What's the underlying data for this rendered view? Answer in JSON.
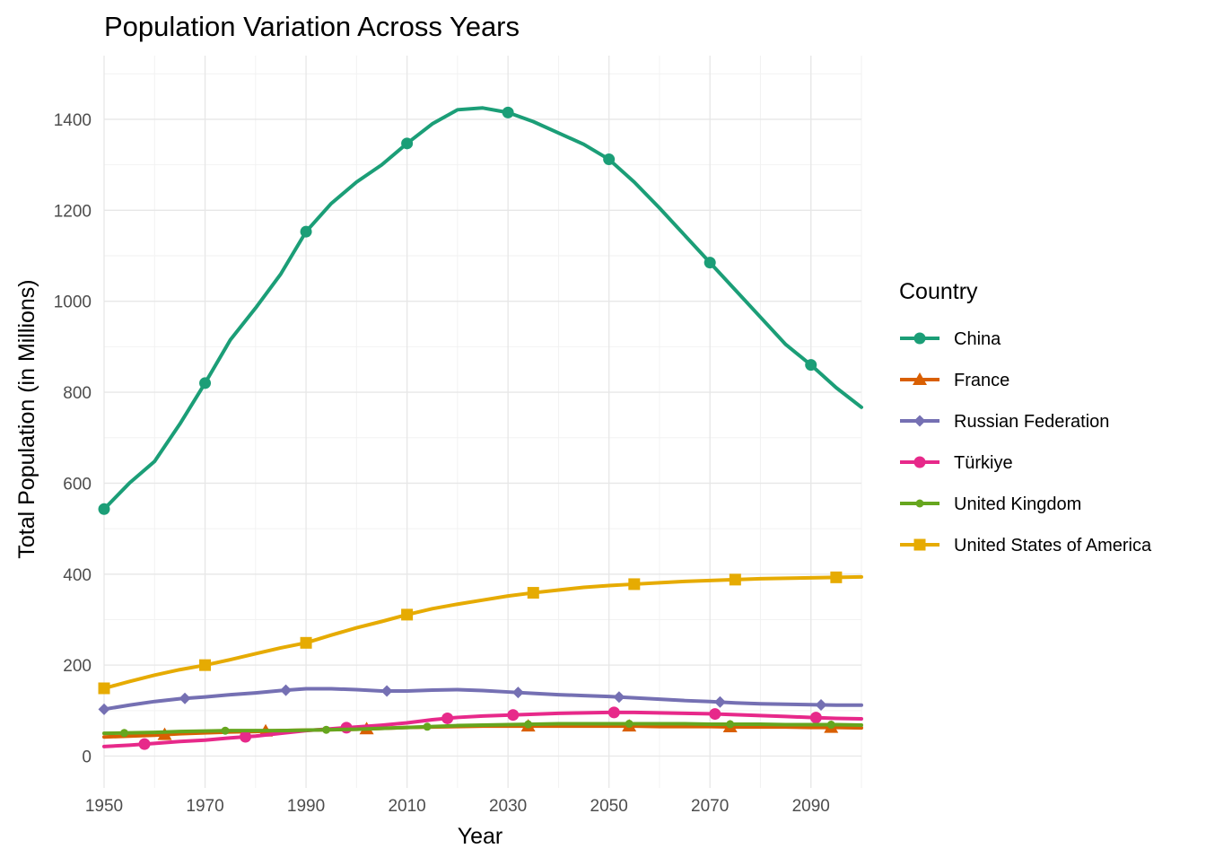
{
  "chart_data": {
    "type": "line",
    "title": "Population Variation Across Years",
    "xlabel": "Year",
    "ylabel": "Total Population (in Millions)",
    "xlim": [
      1950,
      2100
    ],
    "ylim": [
      -70,
      1540
    ],
    "x_ticks": [
      1950,
      1970,
      1990,
      2010,
      2030,
      2050,
      2070,
      2090
    ],
    "y_ticks": [
      0,
      200,
      400,
      600,
      800,
      1000,
      1200,
      1400
    ],
    "grid": true,
    "legend": {
      "title": "Country",
      "position": "right"
    },
    "x": [
      1950,
      1955,
      1960,
      1965,
      1970,
      1975,
      1980,
      1985,
      1990,
      1995,
      2000,
      2005,
      2010,
      2015,
      2020,
      2025,
      2030,
      2035,
      2040,
      2045,
      2050,
      2055,
      2060,
      2065,
      2070,
      2075,
      2080,
      2085,
      2090,
      2095,
      2100
    ],
    "series": [
      {
        "name": "China",
        "color": "#1B9E77",
        "marker": "circle",
        "marker_x": [
          1950,
          1970,
          1990,
          2010,
          2030,
          2050,
          2070,
          2090
        ],
        "values": [
          543,
          600,
          648,
          730,
          820,
          915,
          985,
          1060,
          1153,
          1215,
          1262,
          1300,
          1347,
          1390,
          1421,
          1425,
          1415,
          1395,
          1370,
          1345,
          1312,
          1262,
          1205,
          1145,
          1085,
          1025,
          965,
          905,
          860,
          810,
          767
        ]
      },
      {
        "name": "France",
        "color": "#D95F02",
        "marker": "triangle",
        "marker_x": [
          1962,
          1982,
          2002,
          2034,
          2054,
          2074,
          2094
        ],
        "values": [
          42,
          44,
          46,
          49,
          51,
          53,
          54,
          56,
          57,
          58,
          59,
          61,
          63,
          64,
          65,
          66,
          66,
          66,
          66,
          66,
          66,
          66,
          65,
          65,
          65,
          64,
          64,
          64,
          63,
          63,
          62
        ]
      },
      {
        "name": "Russian Federation",
        "color": "#7570B3",
        "marker": "diamond",
        "marker_x": [
          1950,
          1966,
          1986,
          2006,
          2032,
          2052,
          2072,
          2092
        ],
        "values": [
          103,
          112,
          120,
          126,
          130,
          135,
          139,
          144,
          148,
          148,
          146,
          143,
          143,
          145,
          146,
          144,
          141,
          138,
          135,
          133,
          131,
          128,
          125,
          122,
          120,
          117,
          115,
          114,
          113,
          112,
          112
        ]
      },
      {
        "name": "Türkiye",
        "color": "#E7298A",
        "marker": "circle",
        "marker_x": [
          1958,
          1978,
          1998,
          2018,
          2031,
          2051,
          2071,
          2091
        ],
        "values": [
          21,
          24,
          28,
          32,
          35,
          40,
          44,
          50,
          56,
          60,
          64,
          68,
          73,
          80,
          85,
          88,
          90,
          92,
          94,
          95,
          96,
          96,
          95,
          94,
          93,
          91,
          89,
          87,
          85,
          83,
          82
        ]
      },
      {
        "name": "United Kingdom",
        "color": "#66A61E",
        "marker": "small-circle",
        "marker_x": [
          1954,
          1974,
          1994,
          2014,
          2034,
          2054,
          2074,
          2094
        ],
        "values": [
          50,
          51,
          52,
          54,
          55,
          56,
          56,
          56,
          57,
          58,
          59,
          61,
          63,
          65,
          67,
          68,
          69,
          70,
          71,
          71,
          71,
          71,
          71,
          71,
          70,
          70,
          70,
          69,
          69,
          69,
          68
        ]
      },
      {
        "name": "United States of America",
        "color": "#E6AB02",
        "marker": "square",
        "marker_x": [
          1950,
          1970,
          1990,
          2010,
          2035,
          2055,
          2075,
          2095
        ],
        "values": [
          149,
          164,
          178,
          190,
          200,
          212,
          225,
          238,
          249,
          266,
          282,
          296,
          311,
          324,
          334,
          343,
          352,
          359,
          365,
          371,
          375,
          378,
          381,
          384,
          386,
          388,
          390,
          391,
          392,
          393,
          394
        ]
      }
    ]
  }
}
